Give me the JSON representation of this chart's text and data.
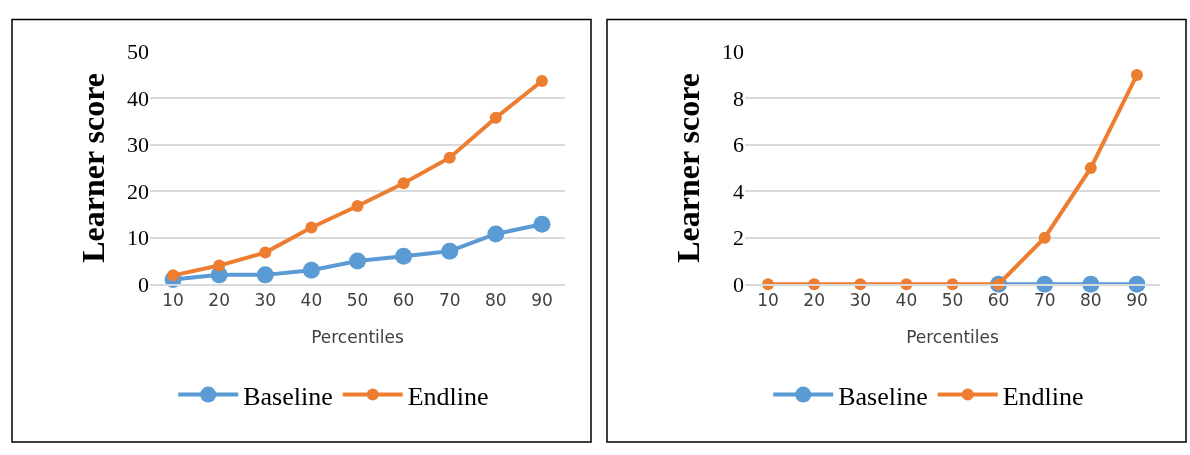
{
  "chart_data": [
    {
      "type": "line",
      "xlabel": "Percentiles",
      "ylabel": "Learner score",
      "categories": [
        "10",
        "20",
        "30",
        "40",
        "50",
        "60",
        "70",
        "80",
        "90"
      ],
      "series": [
        {
          "name": "Baseline",
          "color": "#5b9bd5",
          "values": [
            1,
            2,
            2,
            3,
            5,
            6,
            7.1,
            10.8,
            12.9
          ]
        },
        {
          "name": "Endline",
          "color": "#ed7d31",
          "values": [
            1.9,
            4,
            6.8,
            12.2,
            16.8,
            21.7,
            27.2,
            35.8,
            43.7
          ]
        }
      ],
      "ylim": [
        0,
        50
      ],
      "yticks": [
        0,
        10,
        20,
        30,
        40,
        50
      ],
      "grid": "y",
      "legend": "bottom",
      "marker": "circle"
    },
    {
      "type": "line",
      "xlabel": "Percentiles",
      "ylabel": "Learner score",
      "categories": [
        "10",
        "20",
        "30",
        "40",
        "50",
        "60",
        "70",
        "80",
        "90"
      ],
      "series": [
        {
          "name": "Baseline",
          "color": "#5b9bd5",
          "values": [
            null,
            null,
            null,
            null,
            null,
            0,
            0,
            0,
            0
          ]
        },
        {
          "name": "Endline",
          "color": "#ed7d31",
          "values": [
            0,
            0,
            0,
            0,
            0,
            0,
            2,
            5,
            9
          ]
        }
      ],
      "ylim": [
        0,
        10
      ],
      "yticks": [
        0,
        2,
        4,
        6,
        8,
        10
      ],
      "grid": "y",
      "legend": "bottom",
      "marker": "circle"
    }
  ]
}
